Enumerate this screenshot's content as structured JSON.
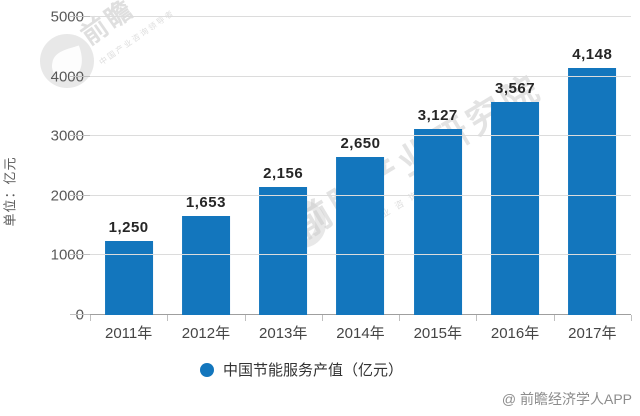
{
  "chart_data": {
    "type": "bar",
    "title": "",
    "categories": [
      "2011年",
      "2012年",
      "2013年",
      "2014年",
      "2015年",
      "2016年",
      "2017年"
    ],
    "values": [
      1250,
      1653,
      2156,
      2650,
      3127,
      3567,
      4148
    ],
    "value_labels": [
      "1,250",
      "1,653",
      "2,156",
      "2,650",
      "3,127",
      "3,567",
      "4,148"
    ],
    "xlabel": "",
    "ylabel": "单位：亿元",
    "ylim": [
      0,
      5000
    ],
    "yticks": [
      0,
      1000,
      2000,
      3000,
      4000,
      5000
    ],
    "grid": true,
    "legend": {
      "label": "中国节能服务产值（亿元）",
      "position": "bottom",
      "marker": "circle"
    }
  },
  "colors": {
    "bar": "#1376bd",
    "legend_marker": "#1376bd"
  },
  "watermark": {
    "brand": "前瞻",
    "brand_full": "前瞻产业研究院",
    "slogan": "中国产业咨询领导者"
  },
  "attribution": "@ 前瞻经济学人APP"
}
